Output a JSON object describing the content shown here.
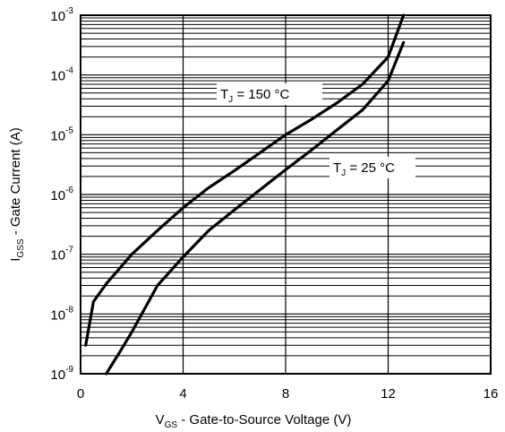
{
  "chart_data": {
    "type": "line",
    "x_axis": {
      "label_main": "V",
      "label_sub": "GS",
      "label_rest": " - Gate-to-Source Voltage (V)",
      "min": 0,
      "max": 16,
      "ticks": [
        0,
        4,
        8,
        12,
        16
      ],
      "tick_labels": [
        "0",
        "4",
        "8",
        "12",
        "16"
      ]
    },
    "y_axis": {
      "label_main": "I",
      "label_sub": "GSS",
      "label_rest": " - Gate Current (A)",
      "scale": "log",
      "min": 1e-09,
      "max": 0.001,
      "ticks": [
        1e-09,
        1e-08,
        1e-07,
        1e-06,
        1e-05,
        0.0001,
        0.001
      ],
      "tick_base": "10",
      "tick_exponents": [
        "-9",
        "-8",
        "-7",
        "-6",
        "-5",
        "-4",
        "-3"
      ]
    },
    "grid": true,
    "series": [
      {
        "annotation_main": "T",
        "annotation_sub": "J",
        "annotation_rest": " = 150 °C",
        "x": [
          0.2,
          0.5,
          1.0,
          2.0,
          3.0,
          4.0,
          5.0,
          6.0,
          7.0,
          8.0,
          9.0,
          10.0,
          11.0,
          12.0,
          12.6
        ],
        "y": [
          3e-09,
          1.6e-08,
          3.2e-08,
          1e-07,
          2.5e-07,
          6e-07,
          1.3e-06,
          2.5e-06,
          5e-06,
          1e-05,
          1.8e-05,
          3.4e-05,
          7e-05,
          0.0002,
          0.001
        ]
      },
      {
        "annotation_main": "T",
        "annotation_sub": "J",
        "annotation_rest": " = 25 °C",
        "x": [
          1.0,
          1.5,
          2.0,
          3.0,
          4.0,
          5.0,
          6.0,
          7.0,
          8.0,
          9.0,
          10.0,
          11.0,
          12.0,
          12.6
        ],
        "y": [
          1e-09,
          2.2e-09,
          5e-09,
          3e-08,
          9e-08,
          2.5e-07,
          5.5e-07,
          1.2e-06,
          2.6e-06,
          5.5e-06,
          1.2e-05,
          2.6e-05,
          8e-05,
          0.00035
        ]
      }
    ]
  }
}
